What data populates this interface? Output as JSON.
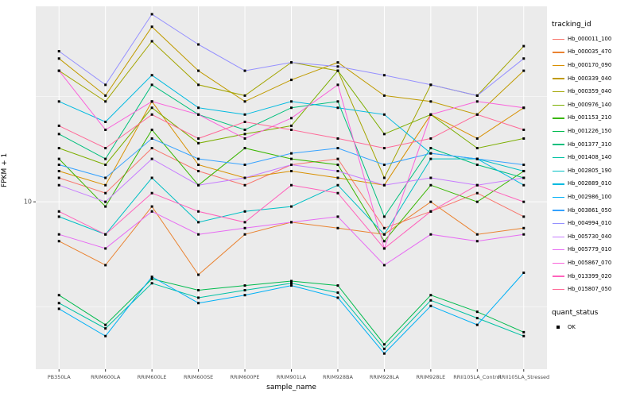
{
  "chart_data": {
    "type": "line",
    "title": "",
    "xlabel": "sample_name",
    "ylabel": "FPKM + 1",
    "y_scale": "log10",
    "ylim": [
      1.6,
      85
    ],
    "y_ticks": [
      10
    ],
    "y_tick_labels": [
      "10"
    ],
    "y_minor_ticks": [
      3.162,
      31.62
    ],
    "grid": true,
    "panel_bg": "#EBEBEB",
    "grid_color": "#FFFFFF",
    "point_color": "#000000",
    "point_shape": "square",
    "legend_position": "right",
    "categories": [
      "PB350LA",
      "RRIM600LA",
      "RRIM600LE",
      "RRIM600SE",
      "RRIM600PE",
      "RRIM901LA",
      "RRIM928BA",
      "RRIM928LA",
      "RRIM928LE",
      "RRII105LA_Control",
      "RRII105LA_Stressed"
    ],
    "series": [
      {
        "name": "Hb_000011_100",
        "color": "#F8766D",
        "values": [
          13,
          11,
          18,
          14,
          12,
          15,
          16,
          7.5,
          9,
          11,
          8.5
        ]
      },
      {
        "name": "Hb_000035_470",
        "color": "#EA8331",
        "values": [
          6.5,
          5,
          9.5,
          4.5,
          7,
          8,
          7.5,
          7,
          10,
          7,
          7.5
        ]
      },
      {
        "name": "Hb_000170_090",
        "color": "#D89000",
        "values": [
          14,
          12,
          30,
          15,
          13,
          14,
          13,
          12,
          26,
          20,
          28
        ]
      },
      {
        "name": "Hb_000339_040",
        "color": "#C09B00",
        "values": [
          48,
          32,
          68,
          42,
          30,
          38,
          46,
          32,
          30,
          26,
          42
        ]
      },
      {
        "name": "Hb_000359_040",
        "color": "#A3A500",
        "values": [
          42,
          30,
          58,
          36,
          32,
          46,
          42,
          13,
          36,
          32,
          55
        ]
      },
      {
        "name": "Hb_000976_140",
        "color": "#7CAE00",
        "values": [
          18,
          15,
          28,
          19,
          21,
          23,
          42,
          21,
          26,
          18,
          20
        ]
      },
      {
        "name": "Hb_001153_210",
        "color": "#39B600",
        "values": [
          16,
          9.5,
          22,
          12,
          18,
          16,
          15,
          6.5,
          12,
          10,
          14
        ]
      },
      {
        "name": "Hb_001226_150",
        "color": "#00BB4E",
        "values": [
          3.6,
          2.6,
          4.3,
          3.8,
          4.0,
          4.2,
          4.0,
          2.1,
          3.6,
          3.0,
          2.4
        ]
      },
      {
        "name": "Hb_001377_310",
        "color": "#00BF7D",
        "values": [
          21,
          16,
          36,
          26,
          22,
          28,
          30,
          8.5,
          18,
          15,
          13
        ]
      },
      {
        "name": "Hb_001408_140",
        "color": "#00C1A3",
        "values": [
          3.3,
          2.5,
          4.1,
          3.5,
          3.8,
          4.1,
          3.7,
          2.0,
          3.4,
          2.8,
          2.3
        ]
      },
      {
        "name": "Hb_002805_190",
        "color": "#00BFC4",
        "values": [
          8.5,
          7,
          13,
          8,
          9,
          9.5,
          12,
          7,
          16,
          16,
          14
        ]
      },
      {
        "name": "Hb_002889_010",
        "color": "#00BAE0",
        "values": [
          30,
          24,
          40,
          28,
          26,
          30,
          28,
          26,
          17,
          16,
          12
        ]
      },
      {
        "name": "Hb_002986_100",
        "color": "#00B0F6",
        "values": [
          3.1,
          2.3,
          4.4,
          3.3,
          3.6,
          4.0,
          3.5,
          1.9,
          3.2,
          2.6,
          4.6
        ]
      },
      {
        "name": "Hb_003861_050",
        "color": "#35A2FF",
        "values": [
          15,
          13,
          20,
          16,
          15,
          17,
          18,
          15,
          17,
          16,
          15
        ]
      },
      {
        "name": "Hb_004994_010",
        "color": "#9590FF",
        "values": [
          52,
          36,
          78,
          56,
          42,
          46,
          44,
          40,
          36,
          32,
          48
        ]
      },
      {
        "name": "Hb_005730_040",
        "color": "#C77CFF",
        "values": [
          12,
          10,
          16,
          12,
          13,
          15,
          14,
          12,
          13,
          12,
          13
        ]
      },
      {
        "name": "Hb_005779_010",
        "color": "#E76BF3",
        "values": [
          7,
          6,
          9,
          7,
          7.5,
          8,
          8.5,
          5,
          7,
          6.5,
          7
        ]
      },
      {
        "name": "Hb_005867_070",
        "color": "#FA62DB",
        "values": [
          42,
          22,
          30,
          26,
          20,
          25,
          36,
          6,
          26,
          30,
          28
        ]
      },
      {
        "name": "Hb_013399_020",
        "color": "#FF62BC",
        "values": [
          9,
          7,
          11,
          9,
          8,
          12,
          11,
          6,
          9,
          12,
          10
        ]
      },
      {
        "name": "Hb_015807_050",
        "color": "#FF6A98",
        "values": [
          23,
          18,
          26,
          20,
          24,
          22,
          20,
          18,
          20,
          26,
          22
        ]
      }
    ],
    "legend": {
      "color_title": "tracking_id",
      "shape_title": "quant_status",
      "shape_entries": [
        {
          "label": "OK",
          "shape": "square",
          "color": "#000000"
        }
      ]
    }
  }
}
